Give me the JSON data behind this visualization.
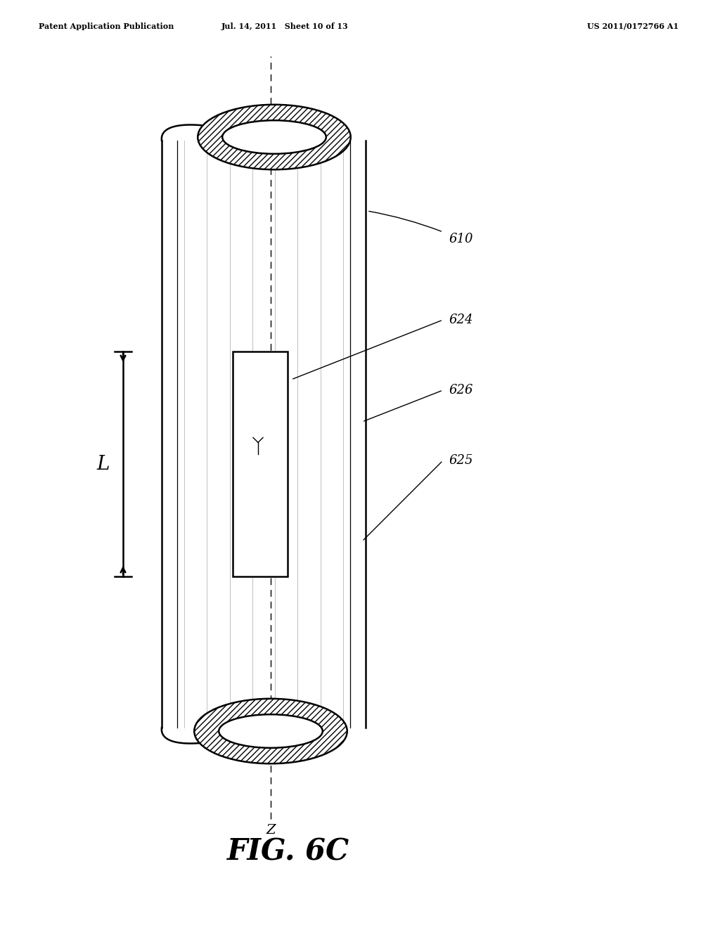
{
  "header_left": "Patent Application Publication",
  "header_mid": "Jul. 14, 2011   Sheet 10 of 13",
  "header_right": "US 2011/0172766 A1",
  "fig_label": "FIG. 6C",
  "ref_610": "610",
  "ref_624": "624",
  "ref_626": "626",
  "ref_625": "625",
  "dim_label": "L",
  "axis_label": "Z",
  "background_color": "#ffffff",
  "line_color": "#000000"
}
